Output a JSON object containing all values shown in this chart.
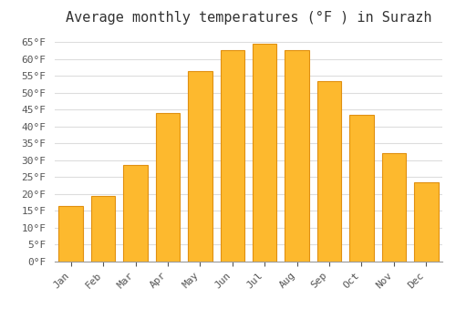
{
  "title": "Average monthly temperatures (°F ) in Surazh",
  "months": [
    "Jan",
    "Feb",
    "Mar",
    "Apr",
    "May",
    "Jun",
    "Jul",
    "Aug",
    "Sep",
    "Oct",
    "Nov",
    "Dec"
  ],
  "values": [
    16.5,
    19.5,
    28.5,
    44.0,
    56.5,
    62.5,
    64.5,
    62.5,
    53.5,
    43.5,
    32.0,
    23.5
  ],
  "bar_color": "#FDB92E",
  "bar_edge_color": "#E09010",
  "ylim": [
    0,
    68
  ],
  "yticks": [
    0,
    5,
    10,
    15,
    20,
    25,
    30,
    35,
    40,
    45,
    50,
    55,
    60,
    65
  ],
  "background_color": "#FFFFFF",
  "grid_color": "#DDDDDD",
  "title_fontsize": 11,
  "tick_fontsize": 8,
  "font_family": "monospace"
}
